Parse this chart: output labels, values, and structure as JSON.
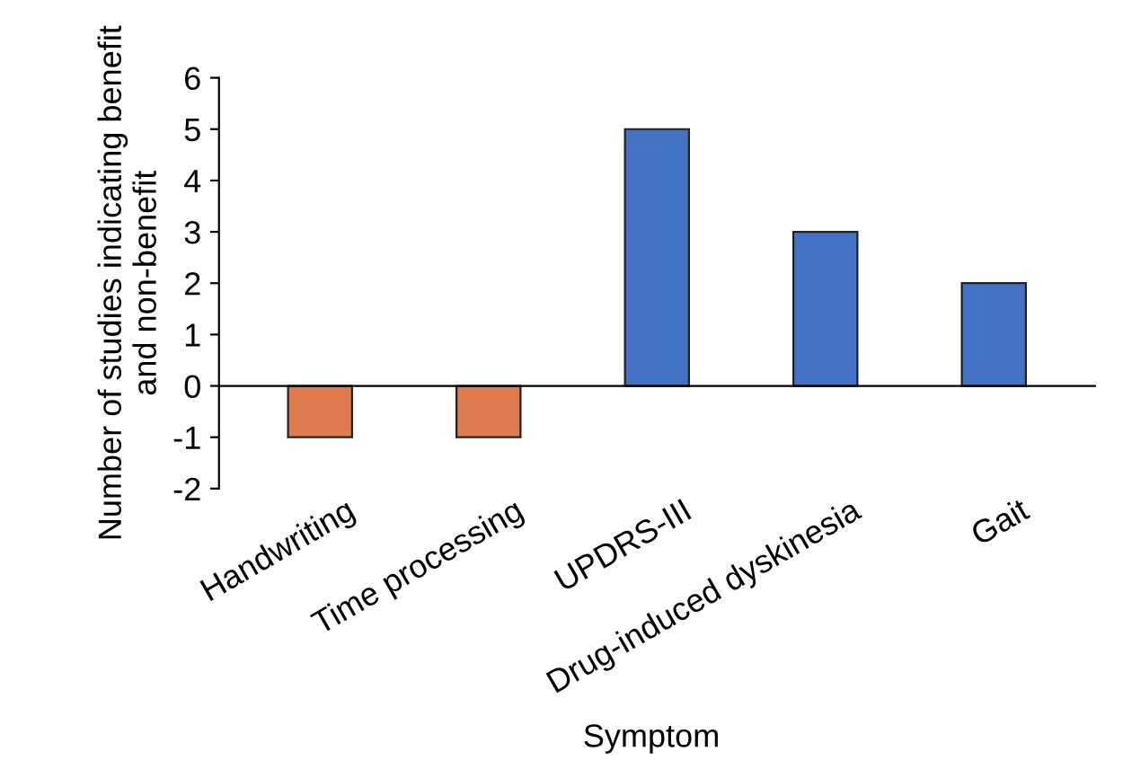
{
  "chart_data": {
    "type": "bar",
    "xlabel": "Symptom",
    "ylabel": "Number of studies indicating benefit\nand non-benefit",
    "categories": [
      "Handwriting",
      "Time processing",
      "UPDRS-III",
      "Drug-induced dyskinesia",
      "Gait"
    ],
    "values": [
      -1,
      -1,
      5,
      3,
      2
    ],
    "colors": [
      "#e07b50",
      "#e07b50",
      "#4472c4",
      "#4472c4",
      "#4472c4"
    ],
    "ylim": [
      -2,
      6
    ],
    "yticks": [
      -2,
      -1,
      0,
      1,
      2,
      3,
      4,
      5,
      6
    ]
  }
}
